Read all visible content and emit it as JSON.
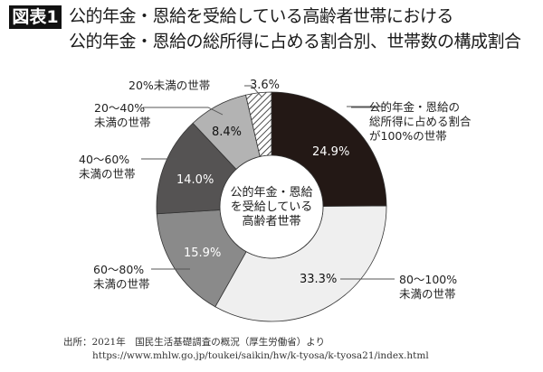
{
  "header": {
    "badge": "図表1",
    "title_line1": "公的年金・恩給を受給している高齢者世帯における",
    "title_line2": "公的年金・恩給の総所得に占める割合別、世帯数の構成割合"
  },
  "center_label": {
    "line1": "公的年金・恩給",
    "line2": "を受給している",
    "line3": "高齢者世帯"
  },
  "labels": {
    "s100": {
      "line1": "公的年金・恩給の",
      "line2": "総所得に占める割合",
      "line3": "が100%の世帯",
      "value": "24.9%"
    },
    "s80_100": {
      "line1": "80〜100%",
      "line2": "未満の世帯",
      "value": "33.3%"
    },
    "s60_80": {
      "line1": "60〜80%",
      "line2": "未満の世帯",
      "value": "15.9%"
    },
    "s40_60": {
      "line1": "40〜60%",
      "line2": "未満の世帯",
      "value": "14.0%"
    },
    "s20_40": {
      "line1": "20〜40%",
      "line2": "未満の世帯",
      "value": "8.4%"
    },
    "s0_20": {
      "line1": "20%未満の世帯",
      "value": "3.6%"
    }
  },
  "source": {
    "line1": "出所：2021年　国民生活基礎調査の概況（厚生労働省）より",
    "line2": "https://www.mhlw.go.jp/toukei/saikin/hw/k-tyosa/k-tyosa21/index.html"
  },
  "colors": {
    "s100": "#231815",
    "s80_100": "#efefef",
    "s60_80": "#8a8a8a",
    "s40_60": "#555353",
    "s20_40": "#b3b3b3",
    "s0_20": "hatched"
  },
  "chart_data": {
    "type": "pie",
    "subtype": "donut",
    "title": "公的年金・恩給を受給している高齢者世帯における公的年金・恩給の総所得に占める割合別、世帯数の構成割合",
    "center_text": "公的年金・恩給を受給している高齢者世帯",
    "categories": [
      "公的年金・恩給の総所得に占める割合が100%の世帯",
      "80〜100%未満の世帯",
      "60〜80%未満の世帯",
      "40〜60%未満の世帯",
      "20〜40%未満の世帯",
      "20%未満の世帯"
    ],
    "values": [
      24.9,
      33.3,
      15.9,
      14.0,
      8.4,
      3.6
    ],
    "unit": "%",
    "start_angle": "12 o'clock",
    "direction": "clockwise",
    "source": "2021年 国民生活基礎調査の概況（厚生労働省）"
  }
}
